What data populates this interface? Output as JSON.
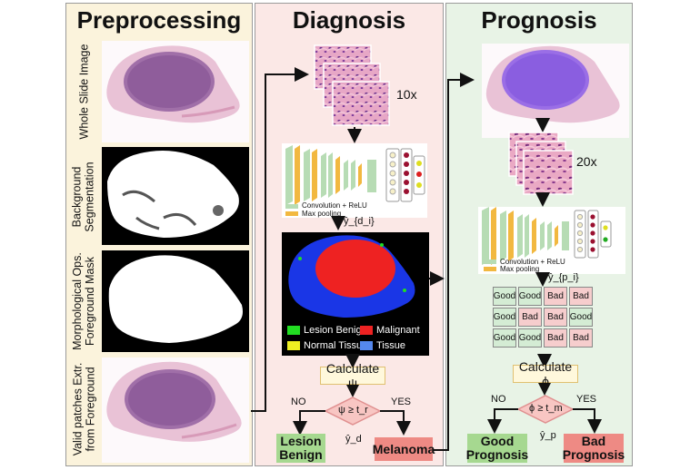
{
  "panels": {
    "preprocessing": "Preprocessing",
    "diagnosis": "Diagnosis",
    "prognosis": "Prognosis"
  },
  "preprocessing_rows": [
    "Whole Slide Image",
    "Background\nSegmentation",
    "Morphological Ops.\nForeground Mask",
    "Valid patches Extr.\nfrom Foreground"
  ],
  "diagnosis": {
    "magnification": "10x",
    "cnn_legend_conv": "Convolution + ReLU",
    "cnn_legend_pool": "Max pooling",
    "yd_i": "ŷ_{d_i}",
    "map_legend": [
      "Lesion Benign",
      "Malignant",
      "Normal Tissue",
      "Tissue"
    ],
    "calculate": "Calculate ψ",
    "condition": "ψ ≥ t_r",
    "no": "NO",
    "yes": "YES",
    "yd": "ŷ_d",
    "out_benign": "Lesion\nBenign",
    "out_melanoma": "Melanoma"
  },
  "prognosis": {
    "magnification": "20x",
    "cnn_legend_conv": "Convolution + ReLU",
    "cnn_legend_pool": "Max pooling",
    "yp_i": "ŷ_{p_i}",
    "grid": [
      [
        "Good",
        "Good",
        "Bad",
        "Bad"
      ],
      [
        "Good",
        "Bad",
        "Bad",
        "Good"
      ],
      [
        "Good",
        "Good",
        "Bad",
        "Bad"
      ]
    ],
    "calculate": "Calculate ϕ",
    "condition": "ϕ ≥ t_m",
    "no": "NO",
    "yes": "YES",
    "yp": "ŷ_p",
    "out_good": "Good\nPrognosis",
    "out_bad": "Bad\nPrognosis"
  },
  "colors": {
    "pre_bg": "#fbf3dc",
    "diag_bg": "#fbe8e6",
    "prog_bg": "#e8f3e6",
    "good_cell": "#d4ecd4",
    "bad_cell": "#f6cdcd",
    "benign_box": "#a6d890",
    "melanoma_box": "#ee8a84",
    "lesion_benign": "#22dd22",
    "malignant": "#ee2222",
    "normal_tissue": "#eeee22",
    "tissue": "#5588ee"
  }
}
